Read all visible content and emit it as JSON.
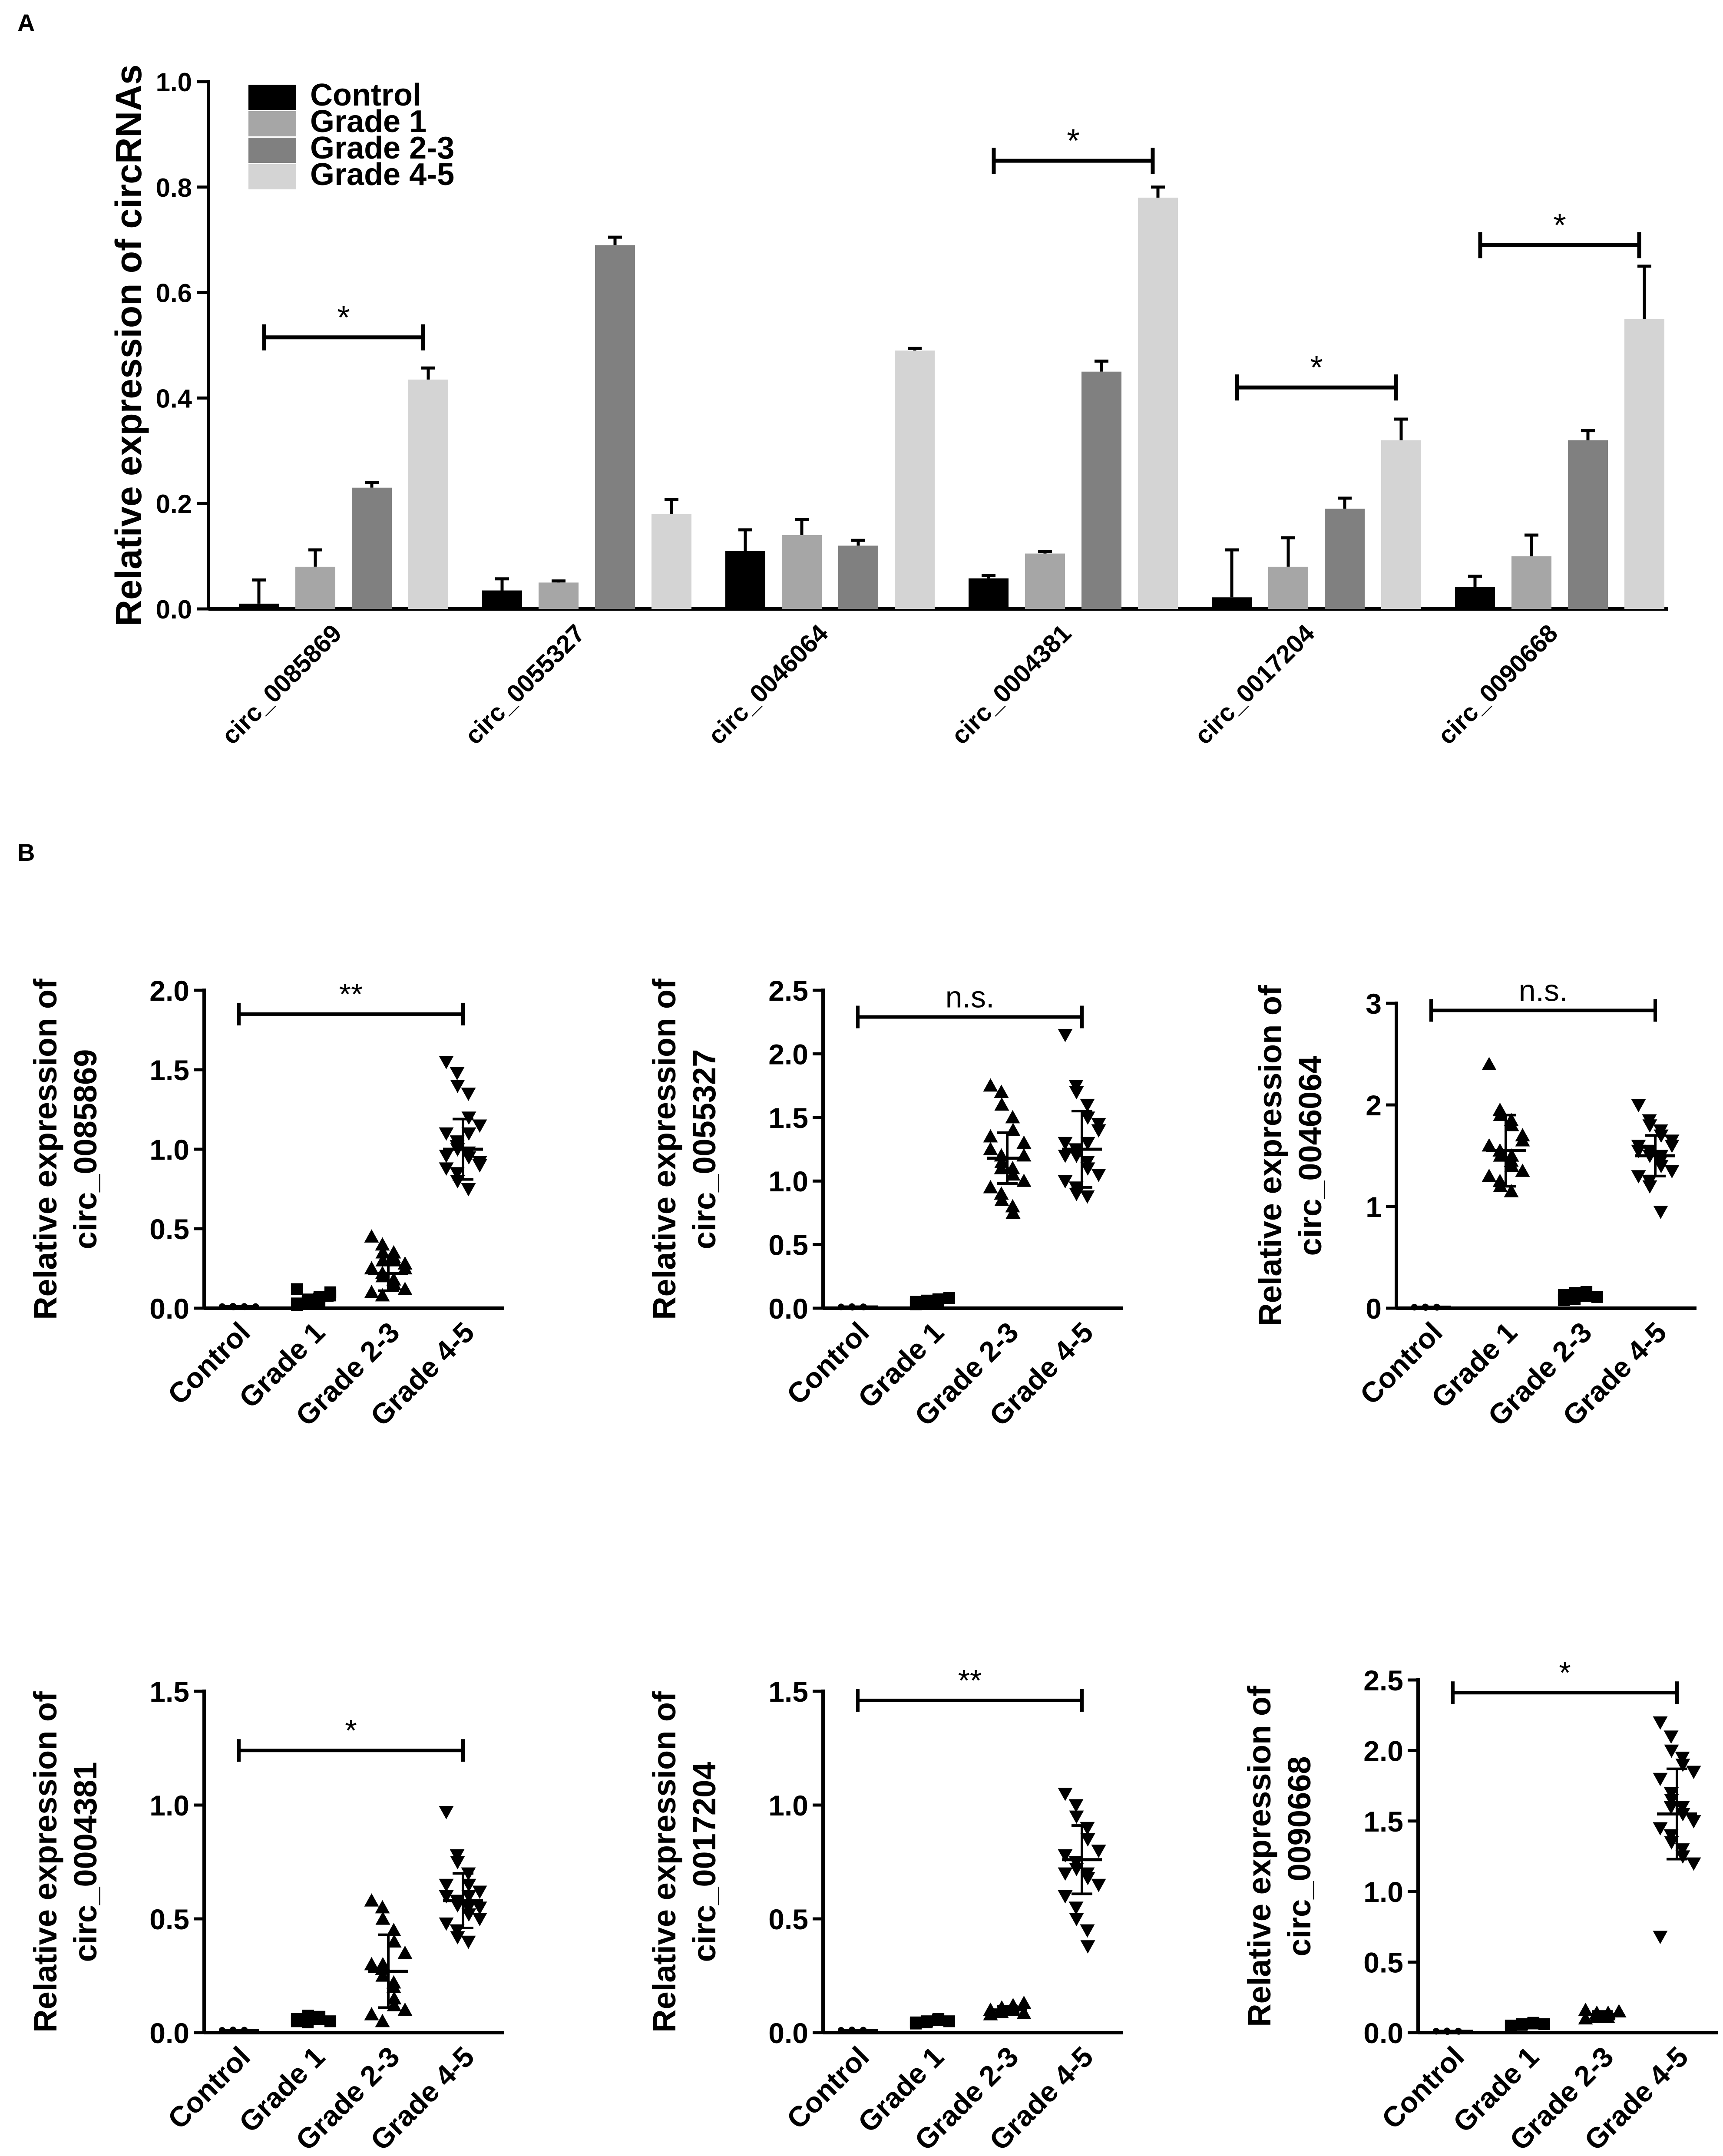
{
  "panel_labels": [
    "A",
    "B"
  ],
  "colors": {
    "control": "#000000",
    "grade1": "#a6a6a6",
    "grade23": "#808080",
    "grade45": "#d4d4d4",
    "axis": "#000000"
  },
  "chart_data": [
    {
      "id": "A",
      "type": "bar",
      "title": "",
      "ylabel": "Relative expression of circRNAs",
      "xlabel": "",
      "ylim": [
        0,
        1.0
      ],
      "yticks": [
        "0.0",
        "0.2",
        "0.4",
        "0.6",
        "0.8",
        "1.0"
      ],
      "categories": [
        "circ_0085869",
        "circ_0055327",
        "circ_0046064",
        "circ_0004381",
        "circ_0017204",
        "circ_0090668"
      ],
      "legend": [
        "Control",
        "Grade 1",
        "Grade 2-3",
        "Grade 4-5"
      ],
      "legend_position": "top-left",
      "series": [
        {
          "name": "Control",
          "values": [
            0.01,
            0.035,
            0.11,
            0.058,
            0.022,
            0.042
          ],
          "errors": [
            0.045,
            0.022,
            0.04,
            0.005,
            0.09,
            0.02
          ]
        },
        {
          "name": "Grade 1",
          "values": [
            0.08,
            0.05,
            0.14,
            0.105,
            0.08,
            0.1
          ],
          "errors": [
            0.032,
            0.003,
            0.03,
            0.004,
            0.055,
            0.04
          ]
        },
        {
          "name": "Grade 2-3",
          "values": [
            0.23,
            0.69,
            0.12,
            0.45,
            0.19,
            0.32
          ],
          "errors": [
            0.01,
            0.015,
            0.01,
            0.02,
            0.02,
            0.018
          ]
        },
        {
          "name": "Grade 4-5",
          "values": [
            0.435,
            0.18,
            0.49,
            0.78,
            0.32,
            0.55
          ],
          "errors": [
            0.022,
            0.028,
            0.004,
            0.02,
            0.04,
            0.1
          ]
        }
      ],
      "significance": [
        {
          "category": 0,
          "from": 0,
          "to": 3,
          "label": "*",
          "y": 0.515
        },
        {
          "category": 3,
          "from": 0,
          "to": 3,
          "label": "*",
          "y": 0.85
        },
        {
          "category": 4,
          "from": 0,
          "to": 3,
          "label": "*",
          "y": 0.42
        },
        {
          "category": 5,
          "from": 0,
          "to": 3,
          "label": "*",
          "y": 0.69
        }
      ]
    },
    {
      "id": "B1",
      "type": "scatter",
      "ylabel": [
        "Relative expression of",
        "circ_0085869"
      ],
      "ylim": [
        0,
        2.0
      ],
      "yticks": [
        "0.0",
        "0.5",
        "1.0",
        "1.5",
        "2.0"
      ],
      "categories": [
        "Control",
        "Grade 1",
        "Grade 2-3",
        "Grade 4-5"
      ],
      "markers": [
        "dot",
        "square",
        "tri-up",
        "tri-down"
      ],
      "groups": [
        {
          "mean": 0.01,
          "sd": 0.003,
          "points": [
            0.01,
            0.012,
            0.008,
            0.011,
            0.009,
            0.01
          ]
        },
        {
          "mean": 0.05,
          "sd": 0.02,
          "points": [
            0.03,
            0.04,
            0.05,
            0.06,
            0.07,
            0.1,
            0.12,
            0.04,
            0.05,
            0.06,
            0.03,
            0.08,
            0.02,
            0.055
          ]
        },
        {
          "mean": 0.22,
          "sd": 0.11,
          "points": [
            0.45,
            0.4,
            0.35,
            0.32,
            0.3,
            0.28,
            0.25,
            0.22,
            0.2,
            0.18,
            0.15,
            0.12,
            0.1,
            0.08,
            0.3,
            0.35,
            0.15,
            0.25
          ]
        },
        {
          "mean": 1.0,
          "sd": 0.19,
          "points": [
            1.55,
            1.48,
            1.4,
            1.35,
            1.2,
            1.15,
            1.1,
            1.05,
            1.0,
            0.98,
            0.95,
            0.9,
            0.88,
            0.85,
            0.8,
            0.75,
            1.1,
            0.92,
            0.96,
            1.02
          ]
        }
      ],
      "significance": {
        "from": 0,
        "to": 3,
        "label": "**",
        "y": 1.85
      }
    },
    {
      "id": "B2",
      "type": "scatter",
      "ylabel": [
        "Relative expression of",
        "circ_0055327"
      ],
      "ylim": [
        0,
        2.5
      ],
      "yticks": [
        "0.0",
        "0.5",
        "1.0",
        "1.5",
        "2.0",
        "2.5"
      ],
      "categories": [
        "Control",
        "Grade 1",
        "Grade 2-3",
        "Grade 4-5"
      ],
      "markers": [
        "dot",
        "square",
        "tri-up",
        "tri-down"
      ],
      "groups": [
        {
          "mean": 0.01,
          "sd": 0.003,
          "points": [
            0.01,
            0.012,
            0.008,
            0.011,
            0.009
          ]
        },
        {
          "mean": 0.05,
          "sd": 0.015,
          "points": [
            0.03,
            0.04,
            0.05,
            0.06,
            0.07,
            0.08,
            0.05,
            0.04,
            0.06
          ]
        },
        {
          "mean": 1.18,
          "sd": 0.2,
          "points": [
            1.75,
            1.7,
            1.6,
            1.5,
            1.4,
            1.3,
            1.25,
            1.2,
            1.15,
            1.1,
            1.05,
            1.0,
            0.95,
            0.9,
            0.85,
            0.8,
            0.75,
            1.2,
            1.35,
            1.1
          ]
        },
        {
          "mean": 1.25,
          "sd": 0.3,
          "points": [
            2.15,
            1.75,
            1.7,
            1.6,
            1.5,
            1.4,
            1.3,
            1.25,
            1.2,
            1.15,
            1.1,
            1.05,
            1.0,
            0.95,
            0.9,
            0.88,
            1.3,
            1.45,
            1.2
          ]
        }
      ],
      "significance": {
        "from": 0,
        "to": 3,
        "label": "n.s.",
        "y": 2.29
      }
    },
    {
      "id": "B3",
      "type": "scatter",
      "ylabel": [
        "Relative expression of",
        "circ_0046064"
      ],
      "ylim": [
        0,
        3
      ],
      "yticks": [
        "0",
        "1",
        "2",
        "3"
      ],
      "categories": [
        "Control",
        "Grade 1",
        "Grade 2-3",
        "Grade 4-5"
      ],
      "markers": [
        "dot",
        "tri-up",
        "square",
        "tri-down"
      ],
      "groups": [
        {
          "mean": 0.01,
          "sd": 0.003,
          "points": [
            0.01,
            0.012,
            0.008,
            0.011,
            0.009
          ]
        },
        {
          "mean": 1.55,
          "sd": 0.35,
          "points": [
            2.4,
            1.95,
            1.9,
            1.85,
            1.8,
            1.7,
            1.6,
            1.55,
            1.5,
            1.45,
            1.4,
            1.35,
            1.3,
            1.25,
            1.2,
            1.15,
            1.5,
            1.65
          ]
        },
        {
          "mean": 0.12,
          "sd": 0.03,
          "points": [
            0.08,
            0.1,
            0.12,
            0.14,
            0.16,
            0.11,
            0.13,
            0.09,
            0.15,
            0.12
          ]
        },
        {
          "mean": 1.5,
          "sd": 0.2,
          "points": [
            2.0,
            1.85,
            1.8,
            1.75,
            1.7,
            1.65,
            1.6,
            1.55,
            1.5,
            1.45,
            1.4,
            1.35,
            1.3,
            1.25,
            1.2,
            0.95,
            1.5,
            1.6,
            1.55
          ]
        }
      ],
      "significance": {
        "from": 0,
        "to": 3,
        "label": "n.s.",
        "y": 2.93
      }
    },
    {
      "id": "B4",
      "type": "scatter",
      "ylabel": [
        "Relative expression of",
        "circ_0004381"
      ],
      "ylim": [
        0,
        1.5
      ],
      "yticks": [
        "0.0",
        "0.5",
        "1.0",
        "1.5"
      ],
      "categories": [
        "Control",
        "Grade 1",
        "Grade 2-3",
        "Grade 4-5"
      ],
      "markers": [
        "dot",
        "square",
        "tri-up",
        "tri-down"
      ],
      "groups": [
        {
          "mean": 0.01,
          "sd": 0.003,
          "points": [
            0.01,
            0.012,
            0.008,
            0.011,
            0.009
          ]
        },
        {
          "mean": 0.06,
          "sd": 0.01,
          "points": [
            0.05,
            0.055,
            0.06,
            0.065,
            0.07,
            0.05,
            0.06,
            0.045,
            0.075,
            0.06
          ]
        },
        {
          "mean": 0.27,
          "sd": 0.16,
          "points": [
            0.58,
            0.55,
            0.5,
            0.45,
            0.4,
            0.35,
            0.3,
            0.28,
            0.25,
            0.2,
            0.15,
            0.1,
            0.08,
            0.05,
            0.3,
            0.22,
            0.12
          ]
        },
        {
          "mean": 0.58,
          "sd": 0.12,
          "points": [
            0.97,
            0.78,
            0.75,
            0.7,
            0.65,
            0.62,
            0.6,
            0.58,
            0.56,
            0.55,
            0.52,
            0.5,
            0.48,
            0.45,
            0.42,
            0.4,
            0.6,
            0.55,
            0.65
          ]
        }
      ],
      "significance": {
        "from": 0,
        "to": 3,
        "label": "*",
        "y": 1.24
      }
    },
    {
      "id": "B5",
      "type": "scatter",
      "ylabel": [
        "Relative expression of",
        "circ_0017204"
      ],
      "ylim": [
        0,
        1.5
      ],
      "yticks": [
        "0.0",
        "0.5",
        "1.0",
        "1.5"
      ],
      "categories": [
        "Control",
        "Grade 1",
        "Grade 2-3",
        "Grade 4-5"
      ],
      "markers": [
        "dot",
        "square",
        "tri-up",
        "tri-down"
      ],
      "groups": [
        {
          "mean": 0.01,
          "sd": 0.003,
          "points": [
            0.01,
            0.012,
            0.008,
            0.011,
            0.009
          ]
        },
        {
          "mean": 0.05,
          "sd": 0.008,
          "points": [
            0.04,
            0.045,
            0.05,
            0.055,
            0.06,
            0.05,
            0.045
          ]
        },
        {
          "mean": 0.1,
          "sd": 0.015,
          "points": [
            0.08,
            0.09,
            0.1,
            0.11,
            0.12,
            0.13,
            0.1,
            0.09,
            0.11,
            0.1,
            0.12,
            0.085
          ]
        },
        {
          "mean": 0.76,
          "sd": 0.15,
          "points": [
            1.05,
            1.0,
            0.95,
            0.9,
            0.85,
            0.8,
            0.78,
            0.75,
            0.72,
            0.7,
            0.68,
            0.65,
            0.6,
            0.55,
            0.5,
            0.45,
            0.38,
            0.8,
            0.7,
            0.75
          ]
        }
      ],
      "significance": {
        "from": 0,
        "to": 3,
        "label": "**",
        "y": 1.46
      }
    },
    {
      "id": "B6",
      "type": "scatter",
      "ylabel": [
        "Relative expression of",
        "circ_0090668"
      ],
      "ylim": [
        0,
        2.5
      ],
      "yticks": [
        "0.0",
        "0.5",
        "1.0",
        "1.5",
        "2.0",
        "2.5"
      ],
      "categories": [
        "Control",
        "Grade 1",
        "Grade 2-3",
        "Grade 4-5"
      ],
      "markers": [
        "dot",
        "square",
        "tri-up",
        "tri-down"
      ],
      "groups": [
        {
          "mean": 0.01,
          "sd": 0.003,
          "points": [
            0.01,
            0.012,
            0.008,
            0.011,
            0.009
          ]
        },
        {
          "mean": 0.06,
          "sd": 0.01,
          "points": [
            0.05,
            0.055,
            0.06,
            0.065,
            0.07,
            0.06,
            0.05
          ]
        },
        {
          "mean": 0.13,
          "sd": 0.02,
          "points": [
            0.1,
            0.11,
            0.12,
            0.13,
            0.14,
            0.15,
            0.16,
            0.12,
            0.14,
            0.11,
            0.13,
            0.15
          ]
        },
        {
          "mean": 1.55,
          "sd": 0.32,
          "points": [
            2.2,
            2.1,
            2.0,
            1.95,
            1.9,
            1.85,
            1.8,
            1.7,
            1.65,
            1.6,
            1.55,
            1.5,
            1.45,
            1.4,
            1.35,
            1.3,
            1.25,
            1.2,
            0.68,
            1.6,
            1.7
          ]
        }
      ],
      "significance": {
        "from": 0,
        "to": 3,
        "label": "*",
        "y": 2.41
      }
    }
  ]
}
